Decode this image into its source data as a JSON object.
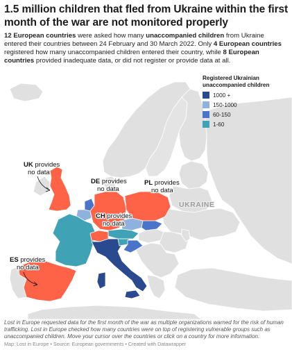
{
  "title": "1.5 million children that fled from Ukraine within the first month of the war are not monitored properly",
  "subtitle": {
    "p1_bold": "12 European countries",
    "p2": " were asked how many ",
    "p3_bold": "unaccompanied children",
    "p4": " from Ukraine entered their countries between 24 February and 30 March 2022. Only ",
    "p5_bold": "4 European countries",
    "p6": " registered how many unaccompanied children entered their country, while ",
    "p7_bold": "8 European countries",
    "p8": " provided inadequate data, or did not register or provide data at all."
  },
  "legend": {
    "title": "Registered Ukrainian unaccompanied children",
    "items": [
      {
        "label": "1000 +",
        "color": "#2a4a8f"
      },
      {
        "label": "150-1000",
        "color": "#8fb1dd"
      },
      {
        "label": "60-150",
        "color": "#4a74c9"
      },
      {
        "label": "1-60",
        "color": "#3fa3b5"
      }
    ]
  },
  "colors": {
    "no_data": "#ff6347",
    "land": "#e0e0e0",
    "sea": "#ffffff"
  },
  "map_labels": {
    "ukraine": "UKRAINE",
    "uk": {
      "code": "UK",
      "text1": " provides",
      "text2": "no data"
    },
    "de": {
      "code": "DE",
      "text1": " provides",
      "text2": "no data"
    },
    "pl": {
      "code": "PL",
      "text1": " provides",
      "text2": "no data"
    },
    "ch": {
      "code": "CH",
      "text1": " provides",
      "text2": "no data"
    },
    "es": {
      "code": "ES",
      "text1": " provides",
      "text2": "no data"
    }
  },
  "footnote": "Lost in Europe requested data for the first month of the war as multiple organizations warned for the risk of human trafficking. Lost in Europe checked how many countries were on top of registering vulnerable groups such as unaccompanied children. Move your cursor over the countries or click on a country for more information.",
  "source": "Map: Lost in Europe • Source: European governments • Created with Datawrapper"
}
